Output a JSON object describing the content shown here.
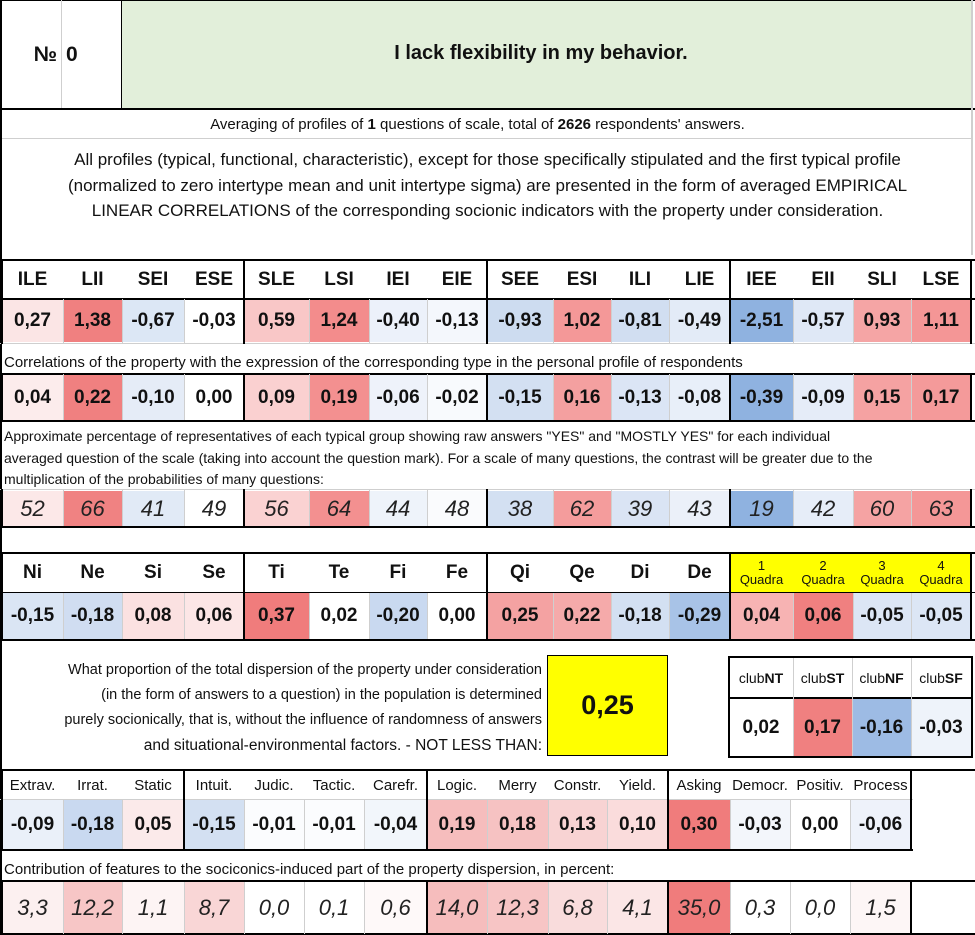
{
  "header": {
    "number_label": "№",
    "number_value": "0",
    "title": "I lack flexibility in my behavior."
  },
  "summary": {
    "before_count": "Averaging of profiles of ",
    "count": "1",
    "middle": " questions of scale, total of ",
    "respondents": "2626",
    "after": " respondents' answers."
  },
  "description": [
    "All profiles (typical, functional, characteristic), except for those specifically stipulated and the first typical profile",
    "(normalized to zero intertype mean and unit intertype sigma) are presented in the form of averaged EMPIRICAL",
    "LINEAR CORRELATIONS of the corresponding socionic indicators with the property under consideration."
  ],
  "types": {
    "labels": [
      "ILE",
      "LII",
      "SEI",
      "ESE",
      "SLE",
      "LSI",
      "IEI",
      "EIE",
      "SEE",
      "ESI",
      "ILI",
      "LIE",
      "IEE",
      "EII",
      "SLI",
      "LSE"
    ],
    "values": [
      "0,27",
      "1,38",
      "-0,67",
      "-0,03",
      "0,59",
      "1,24",
      "-0,40",
      "-0,13",
      "-0,93",
      "1,02",
      "-0,81",
      "-0,49",
      "-2,51",
      "-0,57",
      "0,93",
      "1,11"
    ],
    "colors": [
      "#fbe5e5",
      "#f08080",
      "#dce7f5",
      "#ffffff",
      "#f9c7c7",
      "#f38c8c",
      "#ecf1fa",
      "#f4f7fc",
      "#cddcf0",
      "#f49898",
      "#d1def1",
      "#e3ebf7",
      "#8fb2e0",
      "#dfe8f6",
      "#f5a5a5",
      "#f49696"
    ]
  },
  "corr_caption": "Correlations of the property with the expression of the corresponding type in the personal profile of respondents",
  "correlations": {
    "values": [
      "0,04",
      "0,22",
      "-0,10",
      "0,00",
      "0,09",
      "0,19",
      "-0,06",
      "-0,02",
      "-0,15",
      "0,16",
      "-0,13",
      "-0,08",
      "-0,39",
      "-0,09",
      "0,15",
      "0,17"
    ],
    "colors": [
      "#fcecec",
      "#f08080",
      "#e5ecf7",
      "#ffffff",
      "#fad0d0",
      "#f39090",
      "#eef2fa",
      "#f8fafd",
      "#d3e0f2",
      "#f4a0a0",
      "#dbe5f5",
      "#e8eff9",
      "#8fb2e0",
      "#e5ecf8",
      "#f5a2a2",
      "#f49a9a"
    ]
  },
  "pct_caption": [
    "Approximate percentage of representatives of each typical group showing raw answers \"YES\" and \"MOSTLY YES\" for each individual",
    "averaged question of the scale (taking into account the question mark). For a scale of many questions, the contrast will be greater due to the",
    "multiplication of the probabilities of many questions:"
  ],
  "percentages": {
    "values": [
      "52",
      "66",
      "41",
      "49",
      "56",
      "64",
      "44",
      "48",
      "38",
      "62",
      "39",
      "43",
      "19",
      "42",
      "60",
      "63"
    ],
    "colors": [
      "#fce8e8",
      "#f08282",
      "#e1eaf6",
      "#ffffff",
      "#fad2d2",
      "#f39090",
      "#eef3fa",
      "#fafbfd",
      "#d3e0f2",
      "#f49c9c",
      "#dae4f4",
      "#ebf0f9",
      "#8fb2e0",
      "#e6edf8",
      "#f5a3a3",
      "#f49797"
    ]
  },
  "functions": {
    "labels": [
      "Ni",
      "Ne",
      "Si",
      "Se",
      "Ti",
      "Te",
      "Fi",
      "Fe",
      "Qi",
      "Qe",
      "Di",
      "De"
    ],
    "values": [
      "-0,15",
      "-0,18",
      "0,08",
      "0,06",
      "0,37",
      "0,02",
      "-0,20",
      "0,00",
      "0,25",
      "0,22",
      "-0,18",
      "-0,29"
    ],
    "colors": [
      "#dae5f4",
      "#d0ddf1",
      "#fbe1e1",
      "#fce6e6",
      "#f07c7c",
      "#ffffff",
      "#c9d9f0",
      "#ffffff",
      "#f4a2a2",
      "#f5aaaa",
      "#d3e0f2",
      "#a8c3e7"
    ]
  },
  "quadras": {
    "numbers": [
      "1",
      "2",
      "3",
      "4"
    ],
    "word": "Quadra",
    "values": [
      "0,04",
      "0,06",
      "-0,05",
      "-0,05"
    ],
    "colors": [
      "#f7b3b3",
      "#f08080",
      "#dce6f5",
      "#dce6f5"
    ],
    "header_color": "#ffff00"
  },
  "dispersion": {
    "text": [
      "What proportion of the total dispersion of the property under consideration",
      "(in the form of answers to a question) in the population is determined",
      "purely socionically, that is, without the influence of randomness of answers",
      "and situational-environmental factors. - NOT LESS THAN:"
    ],
    "value": "0,25",
    "color": "#ffff00"
  },
  "clubs": {
    "prefix": "club",
    "names": [
      "NT",
      "ST",
      "NF",
      "SF"
    ],
    "values": [
      "0,02",
      "0,17",
      "-0,16",
      "-0,03"
    ],
    "colors": [
      "#ffffff",
      "#f08080",
      "#9dbbe4",
      "#eef3fa"
    ]
  },
  "features": {
    "labels": [
      "Extrav.",
      "Irrat.",
      "Static",
      "Intuit.",
      "Judic.",
      "Tactic.",
      "Carefr.",
      "Logic.",
      "Merry",
      "Constr.",
      "Yield.",
      "Asking",
      "Democr.",
      "Positiv.",
      "Process"
    ],
    "values": [
      "-0,09",
      "-0,18",
      "0,05",
      "-0,15",
      "-0,01",
      "-0,01",
      "-0,04",
      "0,19",
      "0,18",
      "0,13",
      "0,10",
      "0,30",
      "-0,03",
      "0,00",
      "-0,06"
    ],
    "colors": [
      "#eaf0f9",
      "#c9d9f0",
      "#fbeaea",
      "#d3e0f2",
      "#fbfcfe",
      "#fbfcfe",
      "#f2f6fb",
      "#f6bdbd",
      "#f6c2c2",
      "#f8d3d3",
      "#fadcdc",
      "#f07c7c",
      "#f3f6fb",
      "#ffffff",
      "#eef2fa"
    ]
  },
  "contrib_caption": "Contribution of features to the sociconics-induced part of the property dispersion, in percent:",
  "contributions": {
    "values": [
      "3,3",
      "12,2",
      "1,1",
      "8,7",
      "0,0",
      "0,1",
      "0,6",
      "14,0",
      "12,3",
      "6,8",
      "4,1",
      "35,0",
      "0,3",
      "0,0",
      "1,5"
    ],
    "colors": [
      "#fcf0f0",
      "#f7c6c6",
      "#fdf4f4",
      "#f9d6d6",
      "#ffffff",
      "#ffffff",
      "#fef9f9",
      "#f6bdbd",
      "#f7c5c5",
      "#f9dcdc",
      "#fbe6e6",
      "#f07c7c",
      "#ffffff",
      "#ffffff",
      "#fdf6f6"
    ]
  }
}
